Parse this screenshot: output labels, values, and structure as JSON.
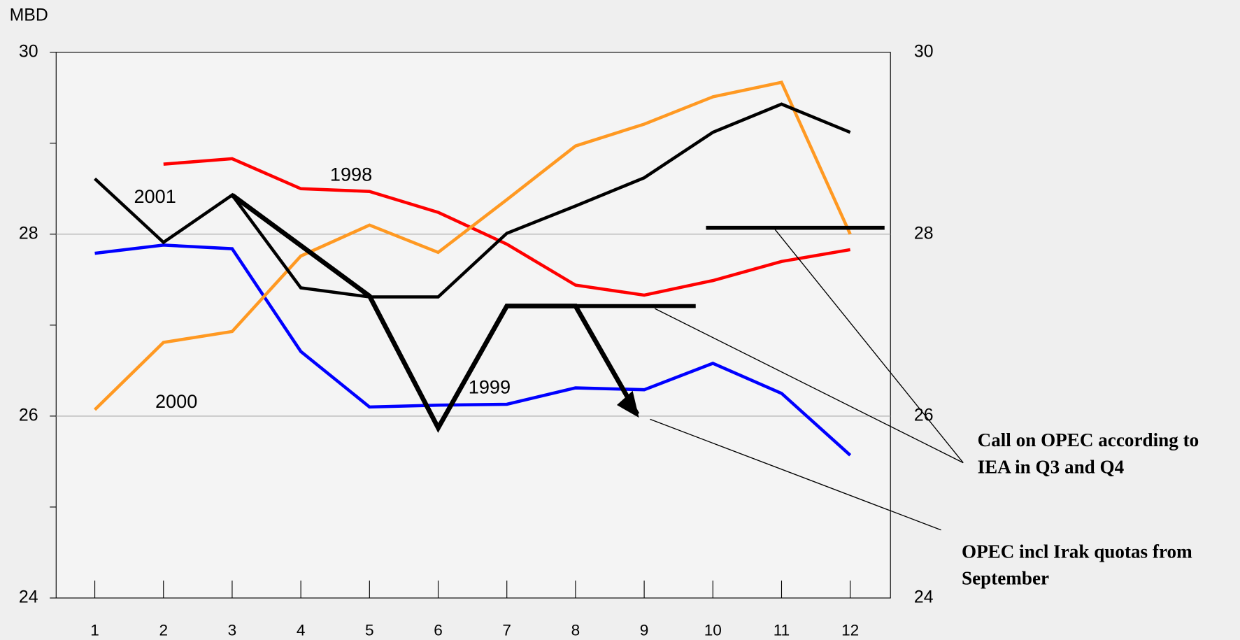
{
  "chart_data": {
    "type": "line",
    "y_label": "MBD",
    "x": [
      1,
      2,
      3,
      4,
      5,
      6,
      7,
      8,
      9,
      10,
      11,
      12
    ],
    "xlim": [
      0.437,
      12.586
    ],
    "xticks": [
      1,
      2,
      3,
      4,
      5,
      6,
      7,
      8,
      9,
      10,
      11,
      12
    ],
    "ylim": [
      24,
      30
    ],
    "yticks": [
      24,
      26,
      28,
      30
    ],
    "yminorticks": [
      25,
      27,
      29
    ],
    "y2lim": [
      24,
      30
    ],
    "y2ticks": [
      24,
      26,
      28,
      30
    ],
    "grid": true,
    "series": [
      {
        "name": "1998",
        "color": "#ff0000",
        "values": [
          null,
          28.77,
          28.83,
          28.5,
          28.47,
          28.24,
          27.89,
          27.44,
          27.33,
          27.49,
          27.7,
          27.83
        ]
      },
      {
        "name": "1999",
        "color": "#0000ff",
        "values": [
          27.79,
          27.88,
          27.84,
          26.71,
          26.1,
          26.12,
          26.13,
          26.31,
          26.29,
          26.58,
          26.25,
          25.57
        ]
      },
      {
        "name": "2000",
        "color": "#ff9922",
        "values": [
          26.07,
          26.81,
          26.93,
          27.76,
          28.1,
          27.8,
          28.38,
          28.97,
          29.21,
          29.51,
          29.67,
          28.0
        ]
      },
      {
        "name": "2001",
        "color": "#000000",
        "values": [
          28.61,
          27.91,
          28.43,
          27.41,
          27.31,
          27.31,
          28.01,
          28.31,
          28.62,
          29.12,
          29.43,
          29.12
        ]
      }
    ],
    "call_on_opec": {
      "color": "#000000",
      "x": [
        3,
        5,
        6,
        7,
        8,
        8.9
      ],
      "values": [
        28.43,
        27.32,
        25.87,
        27.21,
        27.21,
        26.02
      ]
    },
    "quota_lines": [
      {
        "color": "#000000",
        "x": [
          7,
          9.75
        ],
        "values": [
          27.21,
          27.21
        ]
      },
      {
        "color": "#000000",
        "x": [
          9.9,
          12.5
        ],
        "values": [
          28.07,
          28.07
        ]
      }
    ],
    "annotations": [
      "Call on OPEC according to IEA in Q3 and Q4",
      "OPEC incl Irak quotas from September"
    ]
  }
}
